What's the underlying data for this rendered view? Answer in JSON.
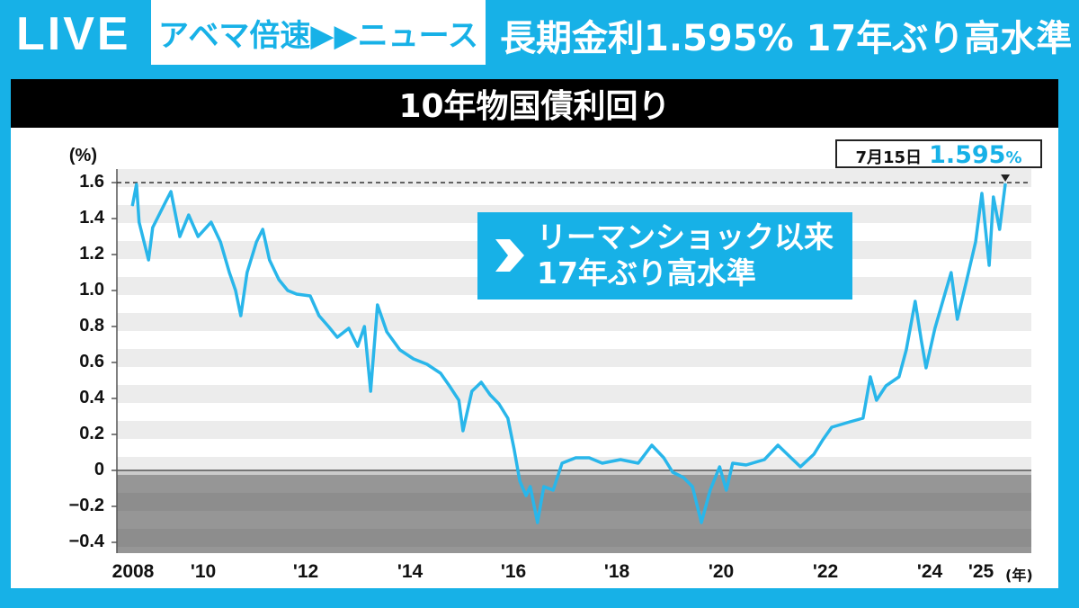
{
  "header": {
    "live": "LIVE",
    "brand": "アベマ倍速▶▶ニュース",
    "headline": "長期金利1.595% 17年ぶり高水準"
  },
  "chart_data": {
    "type": "line",
    "title": "10年物国債利回り",
    "ylabel": "(%)",
    "xlabel": "(年)",
    "ylim": [
      -0.45,
      1.7
    ],
    "yticks": [
      "1.6",
      "1.4",
      "1.2",
      "1.0",
      "0.8",
      "0.6",
      "0.4",
      "0.2",
      "0",
      "−0.2",
      "−0.4"
    ],
    "ytick_values": [
      1.6,
      1.4,
      1.2,
      1.0,
      0.8,
      0.6,
      0.4,
      0.2,
      0,
      -0.2,
      -0.4
    ],
    "xticks": [
      "2008",
      "'10",
      "'12",
      "'14",
      "'16",
      "'18",
      "'20",
      "'22",
      "'24",
      "'25"
    ],
    "xtick_values": [
      2008.7,
      2010,
      2012,
      2014,
      2016,
      2018,
      2020,
      2022,
      2024,
      2025
    ],
    "grid": "horizontal bands",
    "line_color": "#29b6ea",
    "reference_line": 1.6,
    "annotation": {
      "line1": "リーマンショック以来",
      "line2": "17年ぶり高水準",
      "icon": "arrow-right-icon"
    },
    "callout": {
      "date": "7月15日",
      "value": "1.595",
      "unit": "%"
    },
    "points": [
      [
        2008.71,
        1.47
      ],
      [
        2008.79,
        1.59
      ],
      [
        2008.84,
        1.38
      ],
      [
        2009.02,
        1.17
      ],
      [
        2009.1,
        1.35
      ],
      [
        2009.36,
        1.5
      ],
      [
        2009.45,
        1.55
      ],
      [
        2009.62,
        1.3
      ],
      [
        2009.79,
        1.42
      ],
      [
        2009.97,
        1.3
      ],
      [
        2010.22,
        1.38
      ],
      [
        2010.4,
        1.27
      ],
      [
        2010.57,
        1.1
      ],
      [
        2010.69,
        1.0
      ],
      [
        2010.79,
        0.86
      ],
      [
        2010.91,
        1.1
      ],
      [
        2011.09,
        1.27
      ],
      [
        2011.21,
        1.34
      ],
      [
        2011.34,
        1.17
      ],
      [
        2011.52,
        1.06
      ],
      [
        2011.69,
        1.0
      ],
      [
        2011.86,
        0.98
      ],
      [
        2012.12,
        0.97
      ],
      [
        2012.29,
        0.86
      ],
      [
        2012.47,
        0.8
      ],
      [
        2012.64,
        0.74
      ],
      [
        2012.86,
        0.79
      ],
      [
        2013.03,
        0.69
      ],
      [
        2013.16,
        0.8
      ],
      [
        2013.28,
        0.44
      ],
      [
        2013.41,
        0.92
      ],
      [
        2013.59,
        0.77
      ],
      [
        2013.84,
        0.67
      ],
      [
        2014.1,
        0.62
      ],
      [
        2014.36,
        0.59
      ],
      [
        2014.62,
        0.54
      ],
      [
        2014.79,
        0.47
      ],
      [
        2014.97,
        0.39
      ],
      [
        2015.05,
        0.22
      ],
      [
        2015.22,
        0.44
      ],
      [
        2015.4,
        0.49
      ],
      [
        2015.57,
        0.42
      ],
      [
        2015.74,
        0.37
      ],
      [
        2015.91,
        0.29
      ],
      [
        2016.03,
        0.12
      ],
      [
        2016.14,
        -0.06
      ],
      [
        2016.26,
        -0.14
      ],
      [
        2016.34,
        -0.09
      ],
      [
        2016.48,
        -0.29
      ],
      [
        2016.6,
        -0.09
      ],
      [
        2016.78,
        -0.11
      ],
      [
        2016.95,
        0.04
      ],
      [
        2017.21,
        0.07
      ],
      [
        2017.47,
        0.07
      ],
      [
        2017.72,
        0.04
      ],
      [
        2018.07,
        0.06
      ],
      [
        2018.41,
        0.04
      ],
      [
        2018.67,
        0.14
      ],
      [
        2018.9,
        0.07
      ],
      [
        2019.07,
        -0.01
      ],
      [
        2019.28,
        -0.04
      ],
      [
        2019.45,
        -0.09
      ],
      [
        2019.62,
        -0.29
      ],
      [
        2019.79,
        -0.11
      ],
      [
        2019.97,
        0.02
      ],
      [
        2020.1,
        -0.11
      ],
      [
        2020.22,
        0.04
      ],
      [
        2020.48,
        0.03
      ],
      [
        2020.83,
        0.06
      ],
      [
        2021.09,
        0.14
      ],
      [
        2021.34,
        0.07
      ],
      [
        2021.52,
        0.02
      ],
      [
        2021.78,
        0.09
      ],
      [
        2021.95,
        0.17
      ],
      [
        2022.12,
        0.24
      ],
      [
        2022.47,
        0.27
      ],
      [
        2022.72,
        0.29
      ],
      [
        2022.86,
        0.52
      ],
      [
        2022.98,
        0.39
      ],
      [
        2023.16,
        0.47
      ],
      [
        2023.41,
        0.52
      ],
      [
        2023.55,
        0.67
      ],
      [
        2023.72,
        0.94
      ],
      [
        2023.84,
        0.72
      ],
      [
        2023.93,
        0.57
      ],
      [
        2024.1,
        0.79
      ],
      [
        2024.28,
        0.97
      ],
      [
        2024.41,
        1.1
      ],
      [
        2024.53,
        0.84
      ],
      [
        2024.71,
        1.06
      ],
      [
        2024.88,
        1.27
      ],
      [
        2025.0,
        1.54
      ],
      [
        2025.14,
        1.14
      ],
      [
        2025.22,
        1.52
      ],
      [
        2025.34,
        1.34
      ],
      [
        2025.45,
        1.595
      ]
    ]
  }
}
